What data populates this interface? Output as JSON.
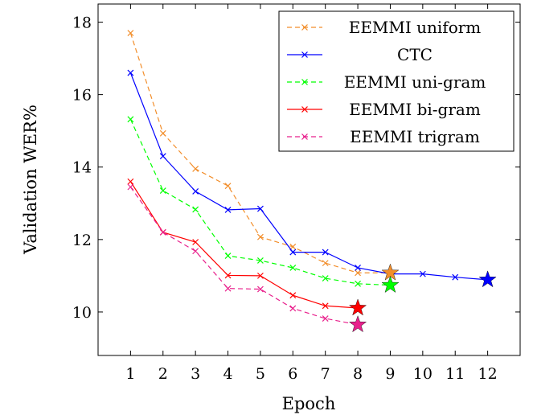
{
  "chart_data": {
    "type": "line",
    "title": "",
    "xlabel": "Epoch",
    "ylabel": "Validation WER%",
    "xlim": [
      0,
      13
    ],
    "ylim": [
      8.8,
      18.5
    ],
    "xticks": [
      1,
      2,
      3,
      4,
      5,
      6,
      7,
      8,
      9,
      10,
      11,
      12
    ],
    "yticks": [
      10,
      12,
      14,
      16,
      18
    ],
    "grid": false,
    "legend_position": "top-right",
    "series": [
      {
        "name": "EEMMI uniform",
        "color": "#f28e2b",
        "dashed": true,
        "x": [
          1,
          2,
          3,
          4,
          5,
          6,
          7,
          8,
          9
        ],
        "values": [
          17.7,
          14.93,
          13.95,
          13.48,
          12.07,
          11.8,
          11.35,
          11.08,
          11.08
        ],
        "best": {
          "x": 9,
          "y": 11.08
        }
      },
      {
        "name": "CTC",
        "color": "#0000ff",
        "dashed": false,
        "x": [
          1,
          2,
          3,
          4,
          5,
          6,
          7,
          8,
          9,
          10,
          11,
          12
        ],
        "values": [
          16.6,
          14.3,
          13.33,
          12.82,
          12.85,
          11.65,
          11.65,
          11.22,
          11.05,
          11.05,
          10.96,
          10.89
        ],
        "best": {
          "x": 12,
          "y": 10.89
        }
      },
      {
        "name": "EEMMI uni-gram",
        "color": "#00ff00",
        "dashed": true,
        "x": [
          1,
          2,
          3,
          4,
          5,
          6,
          7,
          8,
          9
        ],
        "values": [
          15.32,
          13.35,
          12.83,
          11.55,
          11.42,
          11.22,
          10.93,
          10.78,
          10.74
        ],
        "best": {
          "x": 9,
          "y": 10.74
        }
      },
      {
        "name": "EEMMI bi-gram",
        "color": "#ff0000",
        "dashed": false,
        "x": [
          1,
          2,
          3,
          4,
          5,
          6,
          7,
          8
        ],
        "values": [
          13.6,
          12.2,
          11.93,
          11.01,
          11.0,
          10.46,
          10.17,
          10.11
        ],
        "best": {
          "x": 8,
          "y": 10.11
        }
      },
      {
        "name": "EEMMI trigram",
        "color": "#e8208c",
        "dashed": true,
        "x": [
          1,
          2,
          3,
          4,
          5,
          6,
          7,
          8
        ],
        "values": [
          13.45,
          12.2,
          11.68,
          10.65,
          10.63,
          10.1,
          9.82,
          9.65
        ],
        "best": {
          "x": 8,
          "y": 9.65
        }
      }
    ]
  }
}
